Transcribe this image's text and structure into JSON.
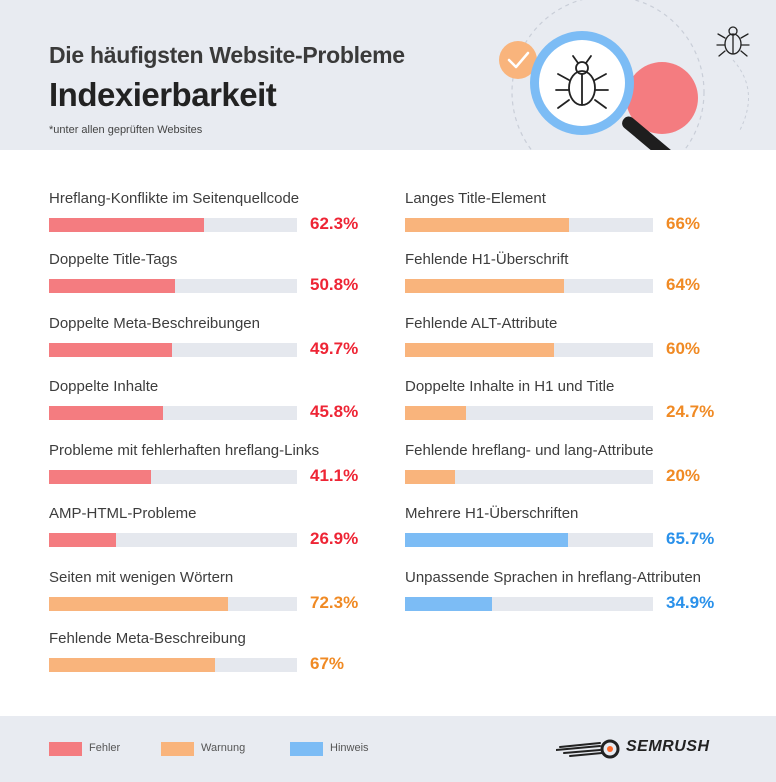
{
  "header": {
    "title": "Die häufigsten Website-Probleme",
    "subtitle": "Indexierbarkeit",
    "note": "*unter allen geprüften Websites"
  },
  "colors": {
    "error": "#f47c80",
    "error_text": "#ee2535",
    "warning": "#f9b47c",
    "warning_text": "#f08a24",
    "notice": "#7cbcf5",
    "notice_text": "#2a91ea",
    "track": "#e5e8ee"
  },
  "legend": [
    {
      "label": "Fehler",
      "severity": "error"
    },
    {
      "label": "Warnung",
      "severity": "warning"
    },
    {
      "label": "Hinweis",
      "severity": "notice"
    }
  ],
  "brand": {
    "name": "SEMRUSH"
  },
  "chart_data": {
    "type": "bar",
    "orientation": "horizontal",
    "unit": "%",
    "xlim": [
      0,
      100
    ],
    "grid": false,
    "legend_position": "bottom-left",
    "columns": [
      [
        {
          "label": "Hreflang-Konflikte im Seitenquellcode",
          "value": 62.3,
          "display": "62.3%",
          "severity": "error"
        },
        {
          "label": "Doppelte Title-Tags",
          "value": 50.8,
          "display": "50.8%",
          "severity": "error"
        },
        {
          "label": "Doppelte Meta-Beschreibungen",
          "value": 49.7,
          "display": "49.7%",
          "severity": "error"
        },
        {
          "label": "Doppelte Inhalte",
          "value": 45.8,
          "display": "45.8%",
          "severity": "error"
        },
        {
          "label": "Probleme mit fehlerhaften hreflang-Links",
          "value": 41.1,
          "display": "41.1%",
          "severity": "error"
        },
        {
          "label": "AMP-HTML-Probleme",
          "value": 26.9,
          "display": "26.9%",
          "severity": "error"
        },
        {
          "label": "Seiten mit wenigen Wörtern",
          "value": 72.3,
          "display": "72.3%",
          "severity": "warning"
        },
        {
          "label": "Fehlende Meta-Beschreibung",
          "value": 67,
          "display": "67%",
          "severity": "warning"
        }
      ],
      [
        {
          "label": "Langes Title-Element",
          "value": 66,
          "display": "66%",
          "severity": "warning"
        },
        {
          "label": "Fehlende H1-Überschrift",
          "value": 64,
          "display": "64%",
          "severity": "warning"
        },
        {
          "label": "Fehlende ALT-Attribute",
          "value": 60,
          "display": "60%",
          "severity": "warning"
        },
        {
          "label": "Doppelte Inhalte in H1 und Title",
          "value": 24.7,
          "display": "24.7%",
          "severity": "warning"
        },
        {
          "label": "Fehlende hreflang- und lang-Attribute",
          "value": 20,
          "display": "20%",
          "severity": "warning"
        },
        {
          "label": "Mehrere H1-Überschriften",
          "value": 65.7,
          "display": "65.7%",
          "severity": "notice"
        },
        {
          "label": "Unpassende Sprachen in hreflang-Attributen",
          "value": 34.9,
          "display": "34.9%",
          "severity": "notice"
        }
      ]
    ]
  }
}
